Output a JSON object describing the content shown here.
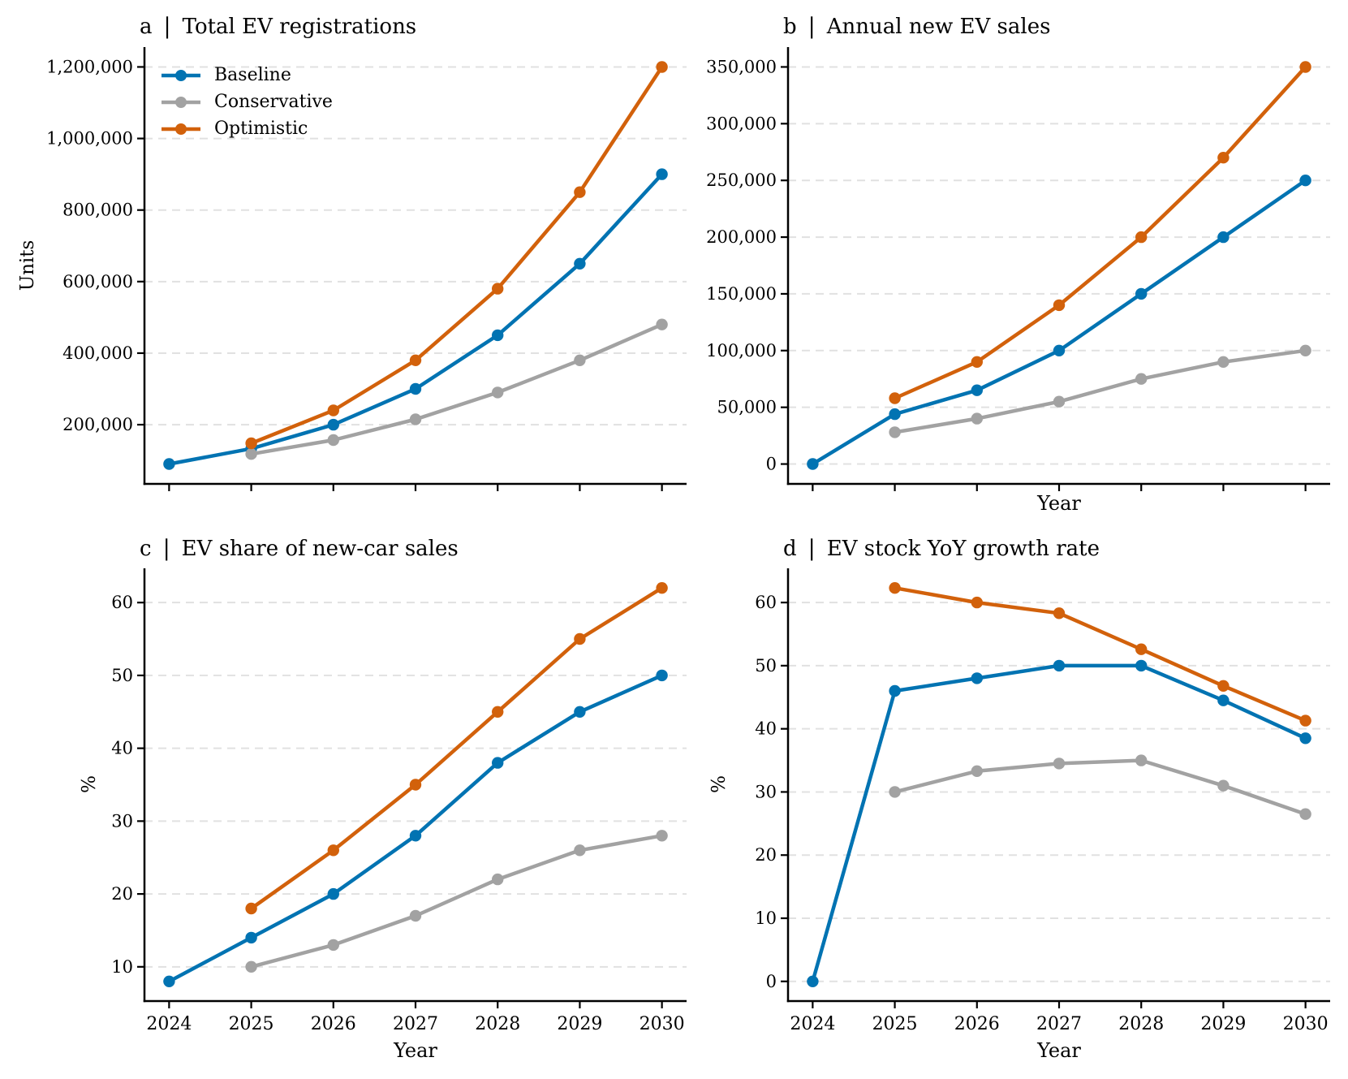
{
  "figure": {
    "title_separator": "|",
    "background": "#ffffff"
  },
  "colors": {
    "baseline": "#0173b2",
    "conservative": "#a2a2a2",
    "optimistic": "#d2610b",
    "grid": "#e1e1e1",
    "axis": "#000000"
  },
  "legend": {
    "location": "upper-left of panel a",
    "frame": false,
    "items": [
      "Baseline",
      "Conservative",
      "Optimistic"
    ]
  },
  "chart_data": [
    {
      "type": "line",
      "panel_letter": "a",
      "title": "Total EV registrations",
      "xlabel": null,
      "ylabel": "Units",
      "x_categories": [
        2024,
        2025,
        2026,
        2027,
        2028,
        2029,
        2030
      ],
      "xtick_labels": null,
      "yticks": [
        200000,
        400000,
        600000,
        800000,
        1000000,
        1200000
      ],
      "ytick_labels": [
        "200,000",
        "400,000",
        "600,000",
        "800,000",
        "1,000,000",
        "1,200,000"
      ],
      "ylim": [
        90000,
        1200000
      ],
      "grid": "horizontal-dashed",
      "legend": true,
      "series": [
        {
          "name": "Baseline",
          "color": "#0173b2",
          "values": [
            90000,
            133000,
            200000,
            300000,
            450000,
            650000,
            900000
          ]
        },
        {
          "name": "Conservative",
          "color": "#a2a2a2",
          "values": [
            null,
            118000,
            157000,
            215000,
            290000,
            380000,
            480000
          ]
        },
        {
          "name": "Optimistic",
          "color": "#d2610b",
          "values": [
            null,
            148000,
            240000,
            380000,
            580000,
            850000,
            1200000
          ]
        }
      ]
    },
    {
      "type": "line",
      "panel_letter": "b",
      "title": "Annual new EV sales",
      "xlabel": "Year",
      "ylabel": null,
      "x_categories": [
        2024,
        2025,
        2026,
        2027,
        2028,
        2029,
        2030
      ],
      "xtick_labels": null,
      "yticks": [
        0,
        50000,
        100000,
        150000,
        200000,
        250000,
        300000,
        350000
      ],
      "ytick_labels": [
        "0",
        "50,000",
        "100,000",
        "150,000",
        "200,000",
        "250,000",
        "300,000",
        "350,000"
      ],
      "ylim": [
        0,
        350000
      ],
      "grid": "horizontal-dashed",
      "legend": false,
      "series": [
        {
          "name": "Baseline",
          "color": "#0173b2",
          "values": [
            0,
            44000,
            65000,
            100000,
            150000,
            200000,
            250000
          ]
        },
        {
          "name": "Conservative",
          "color": "#a2a2a2",
          "values": [
            null,
            28000,
            40000,
            55000,
            75000,
            90000,
            100000
          ]
        },
        {
          "name": "Optimistic",
          "color": "#d2610b",
          "values": [
            null,
            58000,
            90000,
            140000,
            200000,
            270000,
            350000
          ]
        }
      ]
    },
    {
      "type": "line",
      "panel_letter": "c",
      "title": "EV share of new-car sales",
      "xlabel": "Year",
      "ylabel": "%",
      "x_categories": [
        2024,
        2025,
        2026,
        2027,
        2028,
        2029,
        2030
      ],
      "xtick_labels": [
        "2024",
        "2025",
        "2026",
        "2027",
        "2028",
        "2029",
        "2030"
      ],
      "yticks": [
        10,
        20,
        30,
        40,
        50,
        60
      ],
      "ytick_labels": [
        "10",
        "20",
        "30",
        "40",
        "50",
        "60"
      ],
      "ylim": [
        8,
        62
      ],
      "grid": "horizontal-dashed",
      "legend": false,
      "series": [
        {
          "name": "Baseline",
          "color": "#0173b2",
          "values": [
            8,
            14,
            20,
            28,
            38,
            45,
            50
          ]
        },
        {
          "name": "Conservative",
          "color": "#a2a2a2",
          "values": [
            null,
            10,
            13,
            17,
            22,
            26,
            28
          ]
        },
        {
          "name": "Optimistic",
          "color": "#d2610b",
          "values": [
            null,
            18,
            26,
            35,
            45,
            55,
            62
          ]
        }
      ]
    },
    {
      "type": "line",
      "panel_letter": "d",
      "title": "EV stock YoY growth rate",
      "xlabel": "Year",
      "ylabel": "%",
      "x_categories": [
        2024,
        2025,
        2026,
        2027,
        2028,
        2029,
        2030
      ],
      "xtick_labels": [
        "2024",
        "2025",
        "2026",
        "2027",
        "2028",
        "2029",
        "2030"
      ],
      "yticks": [
        0,
        10,
        20,
        30,
        40,
        50,
        60
      ],
      "ytick_labels": [
        "0",
        "10",
        "20",
        "30",
        "40",
        "50",
        "60"
      ],
      "ylim": [
        0,
        62.3
      ],
      "grid": "horizontal-dashed",
      "legend": false,
      "series": [
        {
          "name": "Baseline",
          "color": "#0173b2",
          "values": [
            0,
            46,
            48,
            50,
            50,
            44.5,
            38.5
          ]
        },
        {
          "name": "Conservative",
          "color": "#a2a2a2",
          "values": [
            null,
            30,
            33.3,
            34.5,
            35,
            31,
            26.5
          ]
        },
        {
          "name": "Optimistic",
          "color": "#d2610b",
          "values": [
            null,
            62.3,
            60,
            58.3,
            52.6,
            46.8,
            41.3
          ]
        }
      ]
    }
  ]
}
